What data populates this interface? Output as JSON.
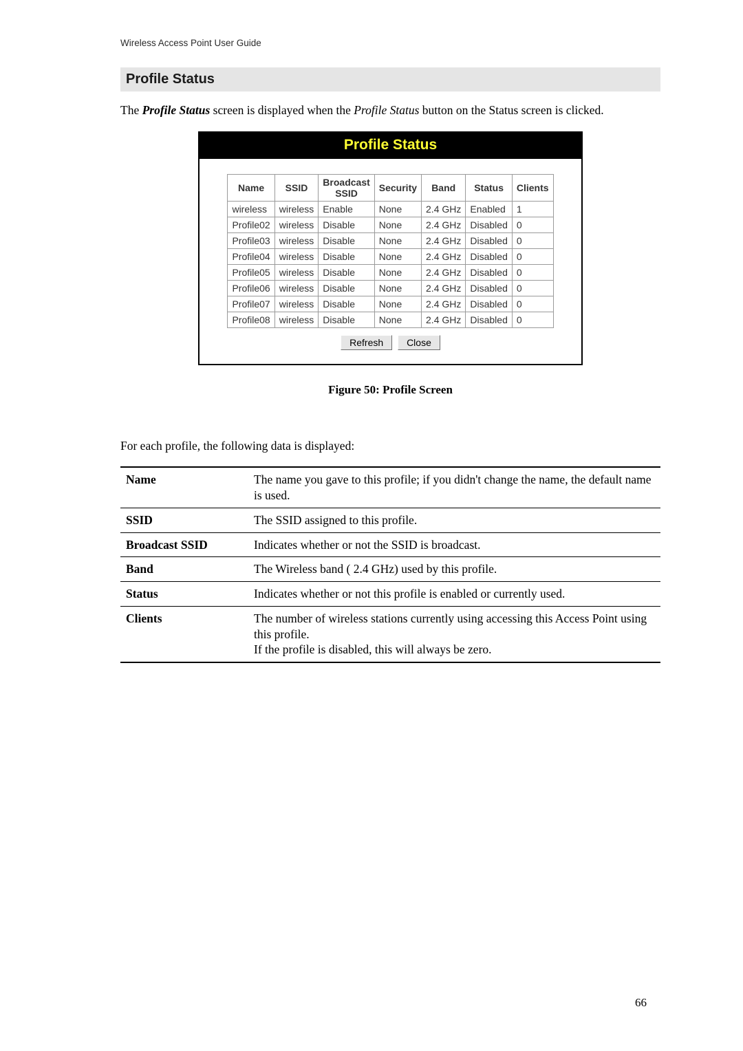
{
  "running_header": "Wireless Access Point User Guide",
  "section_heading": "Profile Status",
  "intro": {
    "prefix": "The ",
    "emph": "Profile Status",
    "mid": " screen is displayed when the ",
    "emph2": "Profile Status",
    "suffix": " button on the Status screen is clicked."
  },
  "screenshot": {
    "title": "Profile Status",
    "columns": [
      "Name",
      "SSID",
      "Broadcast\nSSID",
      "Security",
      "Band",
      "Status",
      "Clients"
    ],
    "rows": [
      [
        "wireless",
        "wireless",
        "Enable",
        "None",
        "2.4 GHz",
        "Enabled",
        "1"
      ],
      [
        "Profile02",
        "wireless",
        "Disable",
        "None",
        "2.4 GHz",
        "Disabled",
        "0"
      ],
      [
        "Profile03",
        "wireless",
        "Disable",
        "None",
        "2.4 GHz",
        "Disabled",
        "0"
      ],
      [
        "Profile04",
        "wireless",
        "Disable",
        "None",
        "2.4 GHz",
        "Disabled",
        "0"
      ],
      [
        "Profile05",
        "wireless",
        "Disable",
        "None",
        "2.4 GHz",
        "Disabled",
        "0"
      ],
      [
        "Profile06",
        "wireless",
        "Disable",
        "None",
        "2.4 GHz",
        "Disabled",
        "0"
      ],
      [
        "Profile07",
        "wireless",
        "Disable",
        "None",
        "2.4 GHz",
        "Disabled",
        "0"
      ],
      [
        "Profile08",
        "wireless",
        "Disable",
        "None",
        "2.4 GHz",
        "Disabled",
        "0"
      ]
    ],
    "buttons": {
      "refresh": "Refresh",
      "close": "Close"
    }
  },
  "figure_caption": "Figure 50: Profile Screen",
  "defs_intro": "For each profile, the following data is displayed:",
  "defs": [
    {
      "term": "Name",
      "def": "The name you gave to this profile; if you didn't change the name, the default name is used."
    },
    {
      "term": "SSID",
      "def": "The SSID assigned to this profile."
    },
    {
      "term": "Broadcast SSID",
      "def": "Indicates whether or not the SSID is broadcast."
    },
    {
      "term": "Band",
      "def": "The Wireless band ( 2.4 GHz) used by this profile."
    },
    {
      "term": "Status",
      "def": "Indicates whether or not this profile is enabled or currently used."
    },
    {
      "term": "Clients",
      "def": "The number of wireless stations currently using accessing this Access Point using this profile.\nIf the profile is disabled, this will always be zero."
    }
  ],
  "page_number": "66",
  "colors": {
    "heading_bg": "#e5e5e5",
    "titlebar_bg": "#000000",
    "titlebar_fg": "#ffff33",
    "table_border": "#9a9a9a",
    "button_bg": "#e6e6e6"
  }
}
